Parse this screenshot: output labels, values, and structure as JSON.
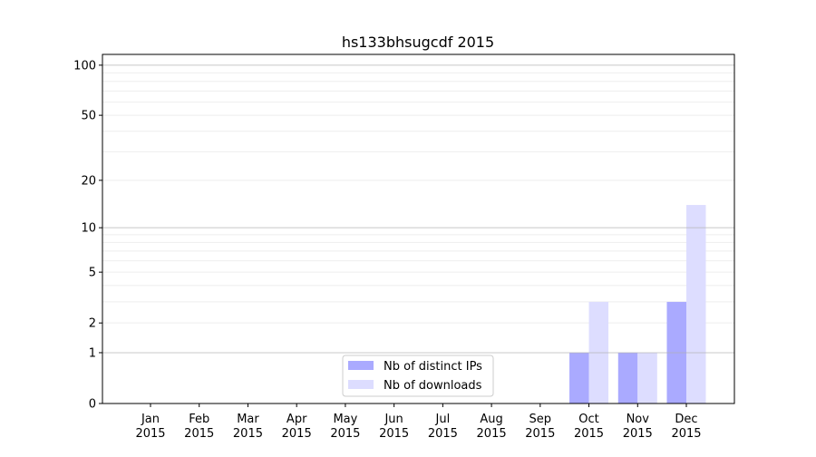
{
  "chart_data": {
    "type": "bar",
    "title": "hs133bhsugcdf 2015",
    "xlabel": "",
    "ylabel": "",
    "yscale": "log10(1+y)",
    "ylim": [
      0,
      116
    ],
    "yticks": [
      0,
      1,
      2,
      5,
      10,
      20,
      50,
      100
    ],
    "ytick_labels": [
      "0",
      "1",
      "2",
      "5",
      "10",
      "20",
      "50",
      "100"
    ],
    "grid": true,
    "categories": [
      "Jan\n2015",
      "Feb\n2015",
      "Mar\n2015",
      "Apr\n2015",
      "May\n2015",
      "Jun\n2015",
      "Jul\n2015",
      "Aug\n2015",
      "Sep\n2015",
      "Oct\n2015",
      "Nov\n2015",
      "Dec\n2015"
    ],
    "series": [
      {
        "name": "Nb of distinct IPs",
        "color": "#aaaaff",
        "values": [
          0,
          0,
          0,
          0,
          0,
          0,
          0,
          0,
          0,
          1,
          1,
          3
        ]
      },
      {
        "name": "Nb of downloads",
        "color": "#ddddff",
        "values": [
          0,
          0,
          0,
          0,
          0,
          0,
          0,
          0,
          0,
          3,
          1,
          14
        ]
      }
    ],
    "legend_placement": "lower-center"
  }
}
